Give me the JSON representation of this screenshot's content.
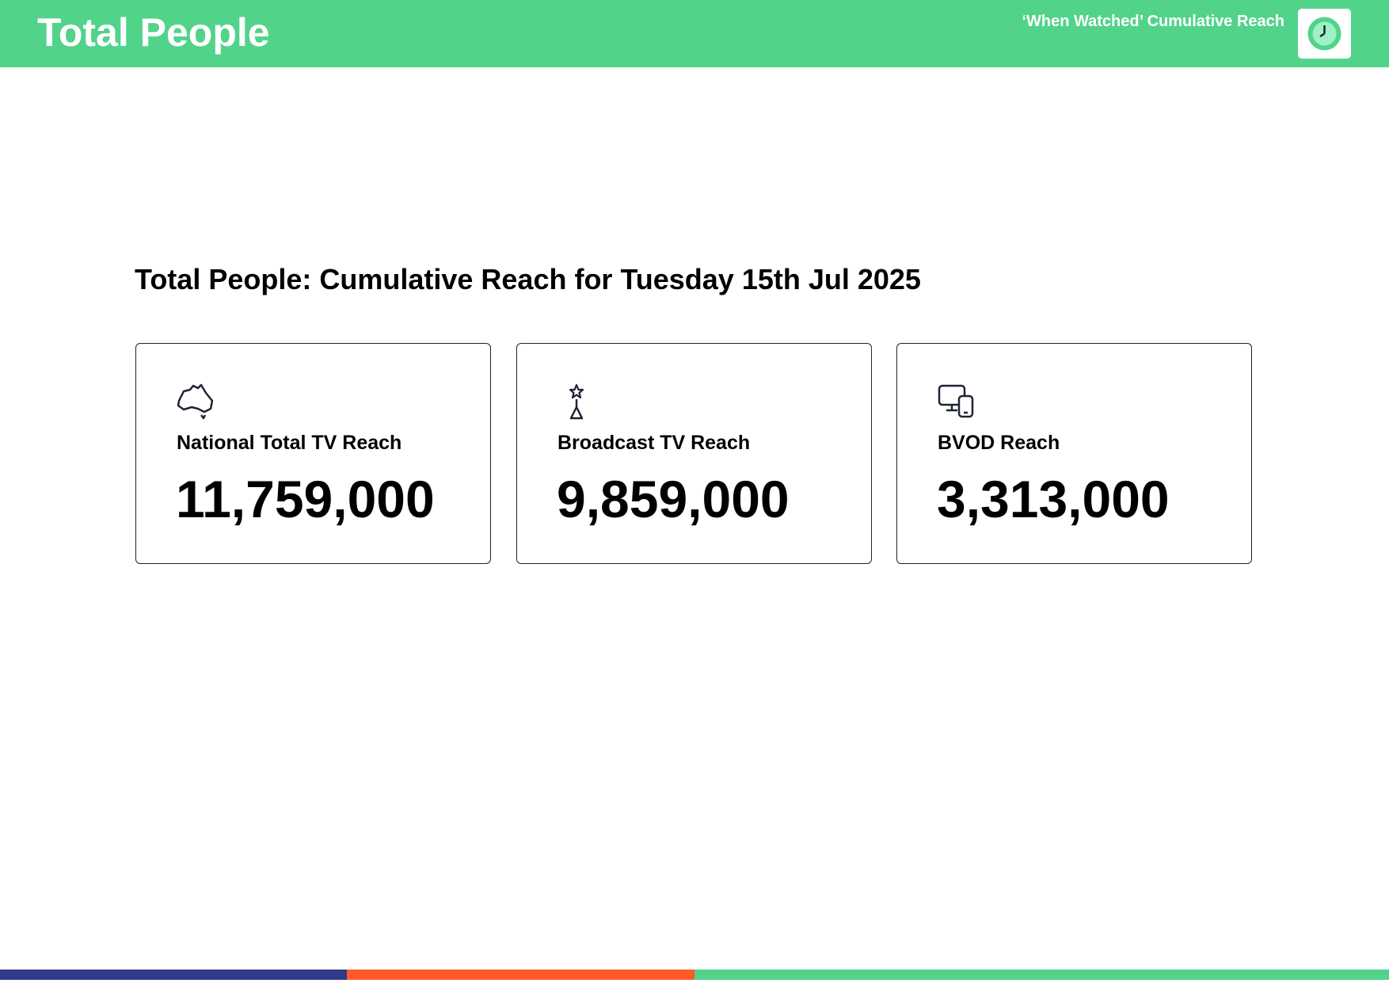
{
  "header": {
    "title": "Total People",
    "subtitle": "‘When Watched’ Cumulative Reach"
  },
  "heading": "Total People: Cumulative Reach for Tuesday 15th Jul 2025",
  "cards": [
    {
      "label": "National Total TV Reach",
      "value": "11,759,000"
    },
    {
      "label": "Broadcast TV Reach",
      "value": "9,859,000"
    },
    {
      "label": "BVOD Reach",
      "value": "3,313,000"
    }
  ]
}
